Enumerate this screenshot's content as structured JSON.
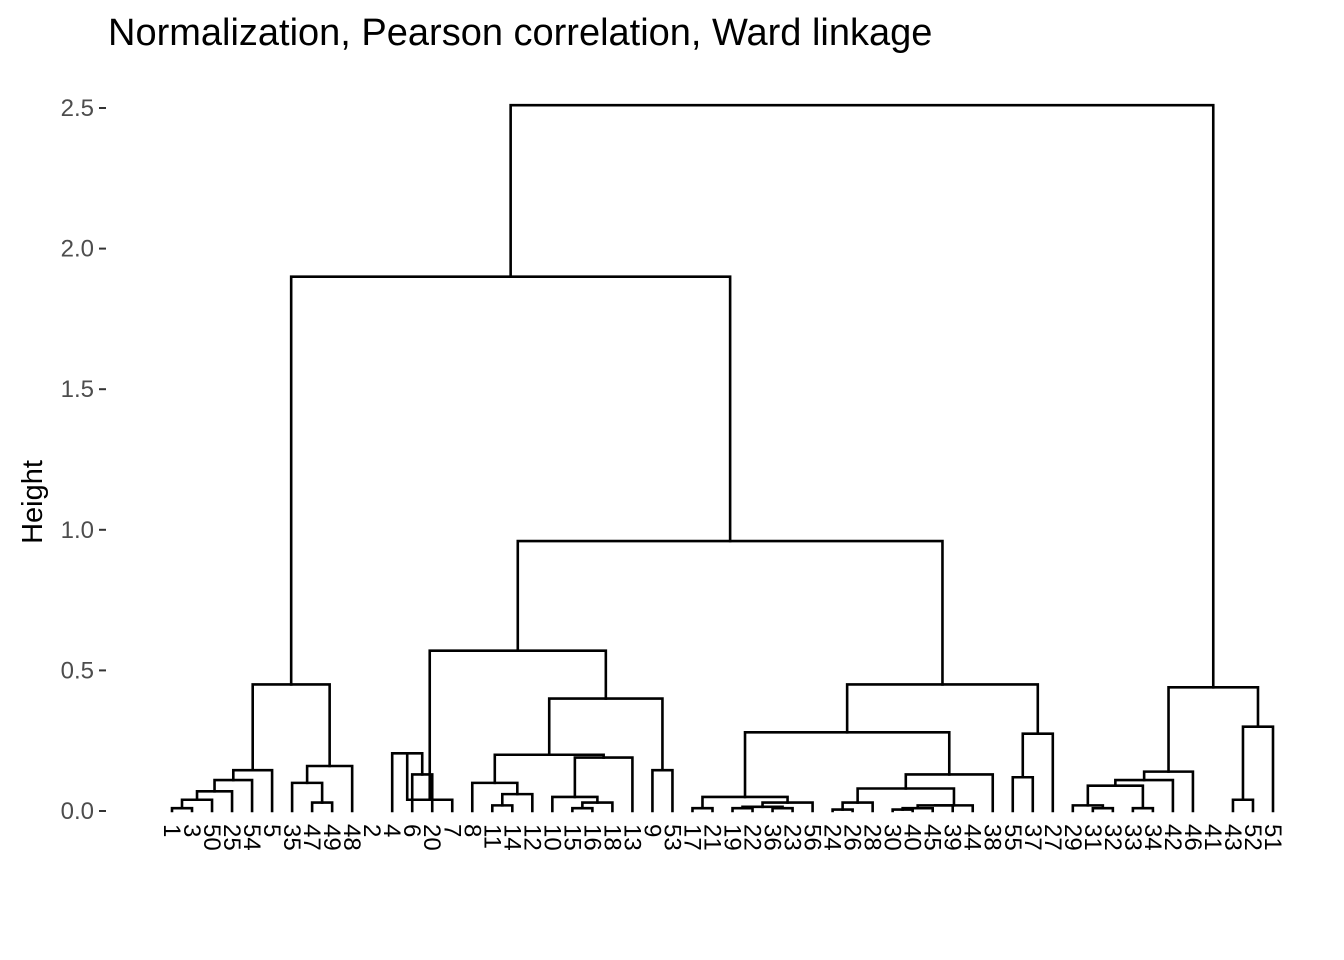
{
  "chart_data": {
    "type": "dendrogram",
    "title": "Normalization, Pearson correlation, Ward linkage",
    "ylabel": "Height",
    "xlabel": "",
    "ylim": [
      0,
      2.5
    ],
    "yticks": [
      0.0,
      0.5,
      1.0,
      1.5,
      2.0,
      2.5
    ],
    "ytick_labels": [
      "0.0",
      "0.5",
      "1.0",
      "1.5",
      "2.0",
      "2.5"
    ],
    "grid": false,
    "line_color": "#000000",
    "leaves": [
      "1",
      "3",
      "50",
      "25",
      "54",
      "5",
      "35",
      "47",
      "49",
      "48",
      "2",
      "4",
      "6",
      "20",
      "7",
      "8",
      "11",
      "14",
      "12",
      "10",
      "15",
      "16",
      "18",
      "13",
      "9",
      "53",
      "17",
      "21",
      "19",
      "22",
      "36",
      "23",
      "56",
      "24",
      "26",
      "28",
      "30",
      "40",
      "45",
      "39",
      "44",
      "38",
      "55",
      "37",
      "27",
      "29",
      "31",
      "32",
      "33",
      "34",
      "42",
      "46",
      "41",
      "43",
      "52",
      "51"
    ],
    "merges": [
      {
        "h": 0.01,
        "l": "L0",
        "r": "L1"
      },
      {
        "h": 0.04,
        "l": "M0",
        "r": "L2"
      },
      {
        "h": 0.07,
        "l": "M1",
        "r": "L3"
      },
      {
        "h": 0.11,
        "l": "M2",
        "r": "L4"
      },
      {
        "h": 0.145,
        "l": "M3",
        "r": "L5"
      },
      {
        "h": 0.03,
        "l": "L7",
        "r": "L8"
      },
      {
        "h": 0.1,
        "l": "L6",
        "r": "M5"
      },
      {
        "h": 0.16,
        "l": "M6",
        "r": "L9"
      },
      {
        "h": 0.45,
        "l": "M4",
        "r": "M7"
      },
      {
        "h": 0.13,
        "l": "L12",
        "r": "L13"
      },
      {
        "h": 0.205,
        "l": "L11",
        "r": "M9"
      },
      {
        "h": 0.04,
        "l": "L14",
        "r": "M10"
      },
      {
        "h": 0.02,
        "l": "L16",
        "r": "L17"
      },
      {
        "h": 0.06,
        "l": "M12",
        "r": "L18"
      },
      {
        "h": 0.1,
        "l": "L15",
        "r": "M13"
      },
      {
        "h": 0.01,
        "l": "L20",
        "r": "L21"
      },
      {
        "h": 0.03,
        "l": "M15",
        "r": "L22"
      },
      {
        "h": 0.05,
        "l": "L19",
        "r": "M16"
      },
      {
        "h": 0.19,
        "l": "M17",
        "r": "L23"
      },
      {
        "h": 0.2,
        "l": "M14",
        "r": "M18"
      },
      {
        "h": 0.145,
        "l": "L24",
        "r": "L25"
      },
      {
        "h": 0.4,
        "l": "M19",
        "r": "M20"
      },
      {
        "h": 0.57,
        "l": "M11",
        "r": "M21"
      },
      {
        "h": 0.01,
        "l": "L26",
        "r": "L27"
      },
      {
        "h": 0.01,
        "l": "L28",
        "r": "L29"
      },
      {
        "h": 0.01,
        "l": "L30",
        "r": "L31"
      },
      {
        "h": 0.015,
        "l": "M24",
        "r": "M25"
      },
      {
        "h": 0.03,
        "l": "M26",
        "r": "L32"
      },
      {
        "h": 0.05,
        "l": "M23",
        "r": "M27"
      },
      {
        "h": 0.005,
        "l": "L33",
        "r": "L34"
      },
      {
        "h": 0.03,
        "l": "M29",
        "r": "L35"
      },
      {
        "h": 0.005,
        "l": "L36",
        "r": "L37"
      },
      {
        "h": 0.01,
        "l": "M31",
        "r": "L38"
      },
      {
        "h": 0.02,
        "l": "M32",
        "r": "L39"
      },
      {
        "h": 0.02,
        "l": "M33",
        "r": "L40"
      },
      {
        "h": 0.08,
        "l": "M30",
        "r": "M34"
      },
      {
        "h": 0.13,
        "l": "M35",
        "r": "L41"
      },
      {
        "h": 0.28,
        "l": "M28",
        "r": "M36"
      },
      {
        "h": 0.12,
        "l": "L42",
        "r": "L43"
      },
      {
        "h": 0.275,
        "l": "M38",
        "r": "L44"
      },
      {
        "h": 0.45,
        "l": "M37",
        "r": "M39"
      },
      {
        "h": 0.96,
        "l": "M22",
        "r": "M40"
      },
      {
        "h": 1.9,
        "l": "M8",
        "r": "M41"
      },
      {
        "h": 0.01,
        "l": "L46",
        "r": "L47"
      },
      {
        "h": 0.02,
        "l": "L45",
        "r": "M43"
      },
      {
        "h": 0.01,
        "l": "L48",
        "r": "L49"
      },
      {
        "h": 0.09,
        "l": "M44",
        "r": "M45"
      },
      {
        "h": 0.11,
        "l": "M46",
        "r": "L50"
      },
      {
        "h": 0.14,
        "l": "M47",
        "r": "L51"
      },
      {
        "h": 0.04,
        "l": "L53",
        "r": "L54"
      },
      {
        "h": 0.3,
        "l": "M49",
        "r": "L55"
      },
      {
        "h": 0.44,
        "l": "M48",
        "r": "M50"
      },
      {
        "h": 2.51,
        "l": "M42",
        "r": "M51"
      }
    ]
  }
}
